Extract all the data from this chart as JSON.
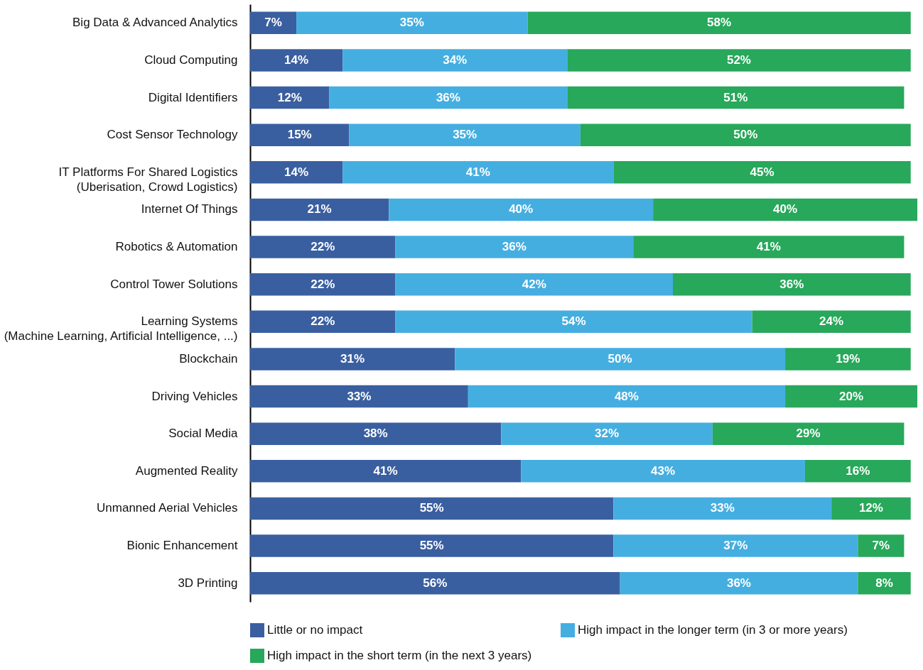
{
  "chart_data": {
    "type": "bar",
    "orientation": "horizontal",
    "stacked": true,
    "legend": "bottom",
    "categories": [
      "Big Data & Advanced Analytics",
      "Cloud Computing",
      "Digital Identifiers",
      "Cost Sensor Technology",
      "IT Platforms For Shared Logistics\n(Uberisation, Crowd Logistics)",
      "Internet Of Things",
      "Robotics & Automation",
      "Control Tower Solutions",
      "Learning Systems\n(Machine Learning, Artificial Intelligence, ...)",
      "Blockchain",
      "Driving Vehicles",
      "Social Media",
      "Augmented Reality",
      "Unmanned Aerial Vehicles",
      "Bionic Enhancement",
      "3D Printing"
    ],
    "series": [
      {
        "name": "Little or no impact",
        "color": "#3a5fa0",
        "values": [
          7,
          14,
          12,
          15,
          14,
          21,
          22,
          22,
          22,
          31,
          33,
          38,
          41,
          55,
          55,
          56
        ],
        "value_labels": [
          "7%",
          "14%",
          "12%",
          "15%",
          "14%",
          "21%",
          "22%",
          "22%",
          "22%",
          "31%",
          "33%",
          "38%",
          "41%",
          "55%",
          "55%",
          "56%"
        ]
      },
      {
        "name": "High impact in the longer term (in 3 or more years)",
        "color": "#45aee0",
        "values": [
          35,
          34,
          36,
          35,
          41,
          40,
          36,
          42,
          54,
          50,
          48,
          32,
          43,
          33,
          37,
          36
        ],
        "value_labels": [
          "35%",
          "34%",
          "36%",
          "35%",
          "41%",
          "40%",
          "36%",
          "42%",
          "54%",
          "50%",
          "48%",
          "32%",
          "43%",
          "33%",
          "37%",
          "36%"
        ]
      },
      {
        "name": "High impact in the short term (in the next 3 years)",
        "color": "#27a85a",
        "values": [
          58,
          52,
          51,
          50,
          45,
          40,
          41,
          36,
          24,
          19,
          20,
          29,
          16,
          12,
          7,
          8
        ],
        "value_labels": [
          "58%",
          "52%",
          "51%",
          "50%",
          "45%",
          "40%",
          "41%",
          "36%",
          "24%",
          "19%",
          "20%",
          "29%",
          "16%",
          "12%",
          "7%",
          "8%"
        ]
      }
    ]
  }
}
